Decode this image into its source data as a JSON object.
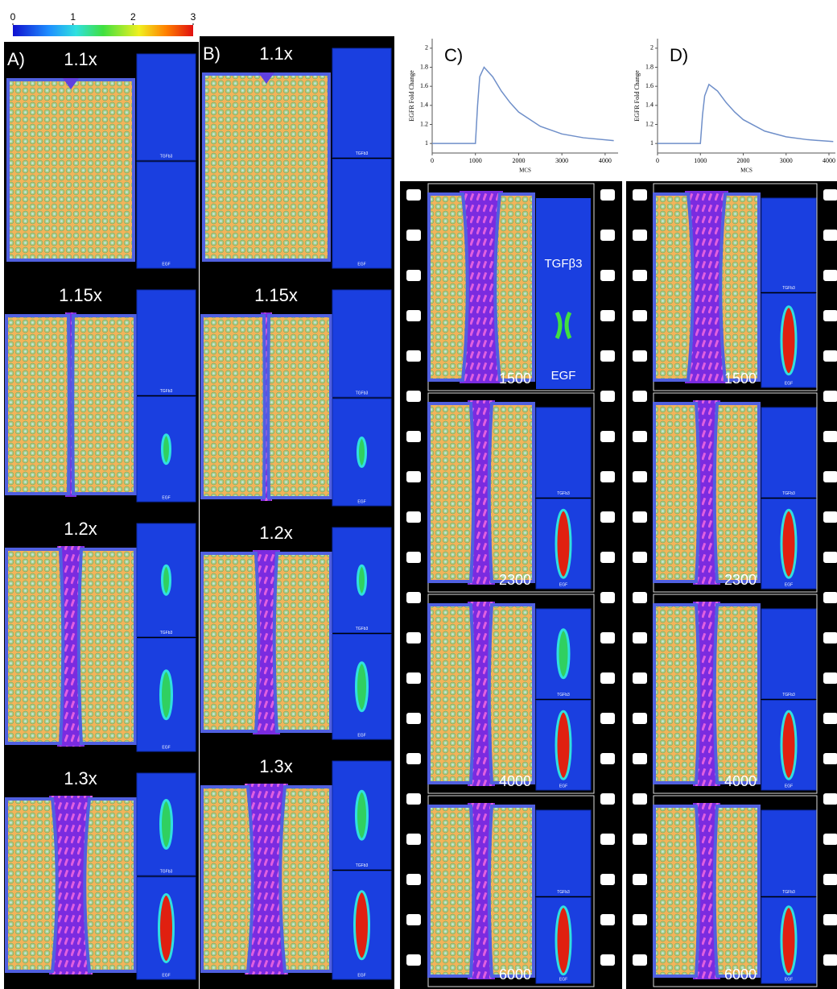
{
  "colorbar": {
    "ticks": [
      0,
      1,
      2,
      3
    ]
  },
  "panels": [
    {
      "label": "A)",
      "rows": [
        {
          "label": "1.1x",
          "maps": [
            "TGFb3",
            "EGF"
          ]
        },
        {
          "label": "1.15x",
          "maps": [
            "TGFb3",
            "EGF"
          ]
        },
        {
          "label": "1.2x",
          "maps": [
            "TGFb3",
            "EGF"
          ]
        },
        {
          "label": "1.3x",
          "maps": [
            "TGFb3",
            "EGF"
          ]
        }
      ]
    },
    {
      "label": "B)",
      "rows": [
        {
          "label": "1.1x",
          "maps": [
            "TGFb3",
            "EGF"
          ]
        },
        {
          "label": "1.15x",
          "maps": [
            "TGFb3",
            "EGF"
          ]
        },
        {
          "label": "1.2x",
          "maps": [
            "TGFb3",
            "EGF"
          ]
        },
        {
          "label": "1.3x",
          "maps": [
            "TGFb3",
            "EGF"
          ]
        }
      ]
    }
  ],
  "chart_data": [
    {
      "type": "line",
      "label": "C)",
      "ylabel": "EGFR Fold Change",
      "xlabel": "MCS",
      "x": [
        0,
        1000,
        1050,
        1100,
        1200,
        1400,
        1600,
        1800,
        2000,
        2500,
        3000,
        3500,
        4200
      ],
      "series": [
        {
          "color": "#6f8fc9",
          "values": [
            1,
            1,
            1.4,
            1.7,
            1.8,
            1.7,
            1.55,
            1.43,
            1.33,
            1.18,
            1.1,
            1.06,
            1.03
          ]
        }
      ],
      "xlim": [
        0,
        4300
      ],
      "ylim": [
        0.9,
        2.1
      ],
      "xticks": [
        0,
        1000,
        2000,
        3000,
        4000
      ],
      "yticks": [
        1,
        1.2,
        1.4,
        1.6,
        1.8,
        2
      ]
    },
    {
      "type": "line",
      "label": "D)",
      "ylabel": "EGFR Fold Change",
      "xlabel": "MCS",
      "x": [
        0,
        1000,
        1050,
        1100,
        1200,
        1400,
        1600,
        1800,
        2000,
        2500,
        3000,
        3500,
        4100
      ],
      "series": [
        {
          "color": "#6f8fc9",
          "values": [
            1,
            1,
            1.3,
            1.5,
            1.62,
            1.55,
            1.43,
            1.33,
            1.25,
            1.13,
            1.07,
            1.04,
            1.02
          ]
        }
      ],
      "xlim": [
        0,
        4150
      ],
      "ylim": [
        0.9,
        2.1
      ],
      "xticks": [
        0,
        1000,
        2000,
        3000,
        4000
      ],
      "yticks": [
        1,
        1.2,
        1.4,
        1.6,
        1.8,
        2
      ]
    }
  ],
  "films": [
    {
      "frames": [
        {
          "time": "1500",
          "maps": [
            "TGFβ3",
            "EGF"
          ]
        },
        {
          "time": "2300",
          "maps": [
            "TGFb3",
            "EGF"
          ]
        },
        {
          "time": "4000",
          "maps": [
            "TGFb3",
            "EGF"
          ]
        },
        {
          "time": "6000",
          "maps": [
            "TGFb3",
            "EGF"
          ]
        }
      ]
    },
    {
      "frames": [
        {
          "time": "1500",
          "maps": [
            "TGFb3",
            "EGF"
          ]
        },
        {
          "time": "2300",
          "maps": [
            "TGFb3",
            "EGF"
          ]
        },
        {
          "time": "4000",
          "maps": [
            "TGFb3",
            "EGF"
          ]
        },
        {
          "time": "6000",
          "maps": [
            "TGFb3",
            "EGF"
          ]
        }
      ]
    }
  ]
}
